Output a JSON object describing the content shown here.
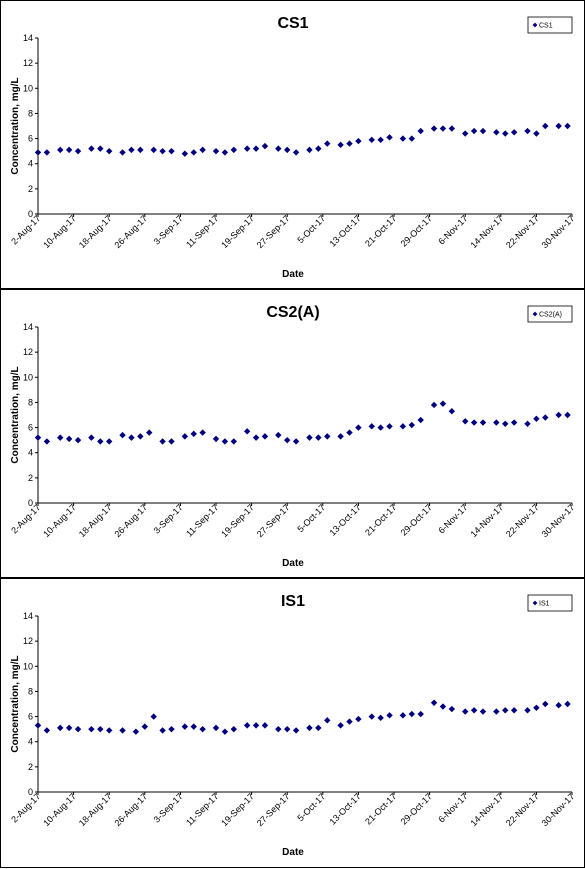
{
  "chart_data": [
    {
      "type": "scatter",
      "title": "CS1",
      "xlabel": "Date",
      "ylabel": "Concentration, mg/L",
      "ylim": [
        0,
        14
      ],
      "yticks": [
        "0",
        "2",
        "4",
        "6",
        "8",
        "10",
        "12",
        "14"
      ],
      "xticks": [
        "2-Aug-17",
        "10-Aug-17",
        "18-Aug-17",
        "26-Aug-17",
        "3-Sep-17",
        "11-Sep-17",
        "19-Sep-17",
        "27-Sep-17",
        "5-Oct-17",
        "13-Oct-17",
        "21-Oct-17",
        "29-Oct-17",
        "6-Nov-17",
        "14-Nov-17",
        "22-Nov-17",
        "30-Nov-17"
      ],
      "legend": "top-right",
      "marker_color": "#000080",
      "series": [
        {
          "name": "CS1",
          "x": [
            "2-Aug-17",
            "4-Aug-17",
            "7-Aug-17",
            "9-Aug-17",
            "11-Aug-17",
            "14-Aug-17",
            "16-Aug-17",
            "18-Aug-17",
            "21-Aug-17",
            "23-Aug-17",
            "25-Aug-17",
            "28-Aug-17",
            "30-Aug-17",
            "1-Sep-17",
            "4-Sep-17",
            "6-Sep-17",
            "8-Sep-17",
            "11-Sep-17",
            "13-Sep-17",
            "15-Sep-17",
            "18-Sep-17",
            "20-Sep-17",
            "22-Sep-17",
            "25-Sep-17",
            "27-Sep-17",
            "29-Sep-17",
            "2-Oct-17",
            "4-Oct-17",
            "6-Oct-17",
            "9-Oct-17",
            "11-Oct-17",
            "13-Oct-17",
            "16-Oct-17",
            "18-Oct-17",
            "20-Oct-17",
            "23-Oct-17",
            "25-Oct-17",
            "27-Oct-17",
            "30-Oct-17",
            "1-Nov-17",
            "3-Nov-17",
            "6-Nov-17",
            "8-Nov-17",
            "10-Nov-17",
            "13-Nov-17",
            "15-Nov-17",
            "17-Nov-17",
            "20-Nov-17",
            "22-Nov-17",
            "24-Nov-17",
            "27-Nov-17",
            "29-Nov-17"
          ],
          "y": [
            4.9,
            4.9,
            5.1,
            5.1,
            5.0,
            5.2,
            5.2,
            5.0,
            4.9,
            5.1,
            5.1,
            5.1,
            5.0,
            5.0,
            4.8,
            4.9,
            5.1,
            5.0,
            4.9,
            5.1,
            5.2,
            5.2,
            5.4,
            5.2,
            5.1,
            4.9,
            5.1,
            5.2,
            5.6,
            5.5,
            5.6,
            5.8,
            5.9,
            5.9,
            6.1,
            6.0,
            6.0,
            6.6,
            6.8,
            6.8,
            6.8,
            6.4,
            6.6,
            6.6,
            6.5,
            6.4,
            6.5,
            6.6,
            6.4,
            7.0,
            7.0,
            7.0
          ]
        }
      ]
    },
    {
      "type": "scatter",
      "title": "CS2(A)",
      "xlabel": "Date",
      "ylabel": "Concentration, mg/L",
      "ylim": [
        0,
        14
      ],
      "yticks": [
        "0",
        "2",
        "4",
        "6",
        "8",
        "10",
        "12",
        "14"
      ],
      "xticks": [
        "2-Aug-17",
        "10-Aug-17",
        "18-Aug-17",
        "26-Aug-17",
        "3-Sep-17",
        "11-Sep-17",
        "19-Sep-17",
        "27-Sep-17",
        "5-Oct-17",
        "13-Oct-17",
        "21-Oct-17",
        "29-Oct-17",
        "6-Nov-17",
        "14-Nov-17",
        "22-Nov-17",
        "30-Nov-17"
      ],
      "legend": "top-right",
      "marker_color": "#000080",
      "series": [
        {
          "name": "CS2(A)",
          "x": [
            "2-Aug-17",
            "4-Aug-17",
            "7-Aug-17",
            "9-Aug-17",
            "11-Aug-17",
            "14-Aug-17",
            "16-Aug-17",
            "18-Aug-17",
            "21-Aug-17",
            "23-Aug-17",
            "25-Aug-17",
            "27-Aug-17",
            "30-Aug-17",
            "1-Sep-17",
            "4-Sep-17",
            "6-Sep-17",
            "8-Sep-17",
            "11-Sep-17",
            "13-Sep-17",
            "15-Sep-17",
            "18-Sep-17",
            "20-Sep-17",
            "22-Sep-17",
            "25-Sep-17",
            "27-Sep-17",
            "29-Sep-17",
            "2-Oct-17",
            "4-Oct-17",
            "6-Oct-17",
            "9-Oct-17",
            "11-Oct-17",
            "13-Oct-17",
            "16-Oct-17",
            "18-Oct-17",
            "20-Oct-17",
            "23-Oct-17",
            "25-Oct-17",
            "27-Oct-17",
            "30-Oct-17",
            "1-Nov-17",
            "3-Nov-17",
            "6-Nov-17",
            "8-Nov-17",
            "10-Nov-17",
            "13-Nov-17",
            "15-Nov-17",
            "17-Nov-17",
            "20-Nov-17",
            "22-Nov-17",
            "24-Nov-17",
            "27-Nov-17",
            "29-Nov-17"
          ],
          "y": [
            5.2,
            4.9,
            5.2,
            5.1,
            5.0,
            5.2,
            4.9,
            4.9,
            5.4,
            5.2,
            5.3,
            5.6,
            4.9,
            4.9,
            5.3,
            5.5,
            5.6,
            5.1,
            4.9,
            4.9,
            5.7,
            5.2,
            5.3,
            5.4,
            5.0,
            4.9,
            5.2,
            5.2,
            5.3,
            5.3,
            5.6,
            6.0,
            6.1,
            6.0,
            6.1,
            6.1,
            6.2,
            6.6,
            7.8,
            7.9,
            7.3,
            6.5,
            6.4,
            6.4,
            6.4,
            6.3,
            6.4,
            6.3,
            6.7,
            6.8,
            7.0,
            7.0
          ]
        }
      ]
    },
    {
      "type": "scatter",
      "title": "IS1",
      "xlabel": "Date",
      "ylabel": "Concentration, mg/L",
      "ylim": [
        0,
        14
      ],
      "yticks": [
        "0",
        "2",
        "4",
        "6",
        "8",
        "10",
        "12",
        "14"
      ],
      "xticks": [
        "2-Aug-17",
        "10-Aug-17",
        "18-Aug-17",
        "26-Aug-17",
        "3-Sep-17",
        "11-Sep-17",
        "19-Sep-17",
        "27-Sep-17",
        "5-Oct-17",
        "13-Oct-17",
        "21-Oct-17",
        "29-Oct-17",
        "6-Nov-17",
        "14-Nov-17",
        "22-Nov-17",
        "30-Nov-17"
      ],
      "legend": "top-right",
      "marker_color": "#000080",
      "series": [
        {
          "name": "IS1",
          "x": [
            "2-Aug-17",
            "4-Aug-17",
            "7-Aug-17",
            "9-Aug-17",
            "11-Aug-17",
            "14-Aug-17",
            "16-Aug-17",
            "18-Aug-17",
            "21-Aug-17",
            "24-Aug-17",
            "26-Aug-17",
            "28-Aug-17",
            "30-Aug-17",
            "1-Sep-17",
            "4-Sep-17",
            "6-Sep-17",
            "8-Sep-17",
            "11-Sep-17",
            "13-Sep-17",
            "15-Sep-17",
            "18-Sep-17",
            "20-Sep-17",
            "22-Sep-17",
            "25-Sep-17",
            "27-Sep-17",
            "29-Sep-17",
            "2-Oct-17",
            "4-Oct-17",
            "6-Oct-17",
            "9-Oct-17",
            "11-Oct-17",
            "13-Oct-17",
            "16-Oct-17",
            "18-Oct-17",
            "20-Oct-17",
            "23-Oct-17",
            "25-Oct-17",
            "27-Oct-17",
            "30-Oct-17",
            "1-Nov-17",
            "3-Nov-17",
            "6-Nov-17",
            "8-Nov-17",
            "10-Nov-17",
            "13-Nov-17",
            "15-Nov-17",
            "17-Nov-17",
            "20-Nov-17",
            "22-Nov-17",
            "24-Nov-17",
            "27-Nov-17",
            "29-Nov-17"
          ],
          "y": [
            5.3,
            4.9,
            5.1,
            5.1,
            5.0,
            5.0,
            5.0,
            4.9,
            4.9,
            4.8,
            5.2,
            6.0,
            4.9,
            5.0,
            5.2,
            5.2,
            5.0,
            5.1,
            4.8,
            5.0,
            5.3,
            5.3,
            5.3,
            5.0,
            5.0,
            4.9,
            5.1,
            5.1,
            5.7,
            5.3,
            5.6,
            5.8,
            6.0,
            5.9,
            6.1,
            6.1,
            6.2,
            6.2,
            7.1,
            6.8,
            6.6,
            6.4,
            6.5,
            6.4,
            6.4,
            6.5,
            6.5,
            6.5,
            6.7,
            7.0,
            6.9,
            7.0
          ]
        }
      ]
    }
  ]
}
